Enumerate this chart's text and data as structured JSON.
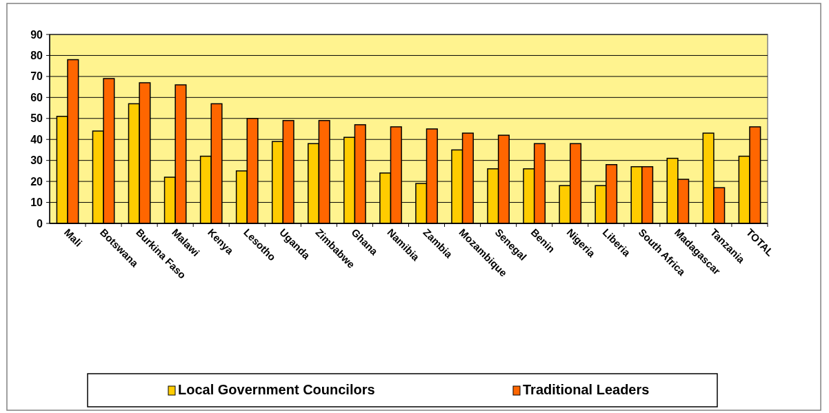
{
  "chart_data": {
    "type": "bar",
    "categories": [
      "Mali",
      "Botswana",
      "Burkina Faso",
      "Malawi",
      "Kenya",
      "Lesotho",
      "Uganda",
      "Zimbabwe",
      "Ghana",
      "Namibia",
      "Zambia",
      "Mozambique",
      "Senegal",
      "Benin",
      "Nigeria",
      "Liberia",
      "South Africa",
      "Madagascar",
      "Tanzania",
      "TOTAL"
    ],
    "series": [
      {
        "name": "Local Government Councilors",
        "color": "#ffcc00",
        "values": [
          51,
          44,
          57,
          22,
          32,
          25,
          39,
          38,
          41,
          24,
          19,
          35,
          26,
          26,
          18,
          18,
          27,
          31,
          43,
          32
        ]
      },
      {
        "name": "Traditional Leaders",
        "color": "#ff6600",
        "values": [
          78,
          69,
          67,
          66,
          57,
          50,
          49,
          49,
          47,
          46,
          45,
          43,
          42,
          38,
          38,
          28,
          27,
          21,
          17,
          46
        ]
      }
    ],
    "ylim": [
      0,
      90
    ],
    "yticks": [
      0,
      10,
      20,
      30,
      40,
      50,
      60,
      70,
      80,
      90
    ],
    "grid": "y",
    "legend": "bottom"
  }
}
